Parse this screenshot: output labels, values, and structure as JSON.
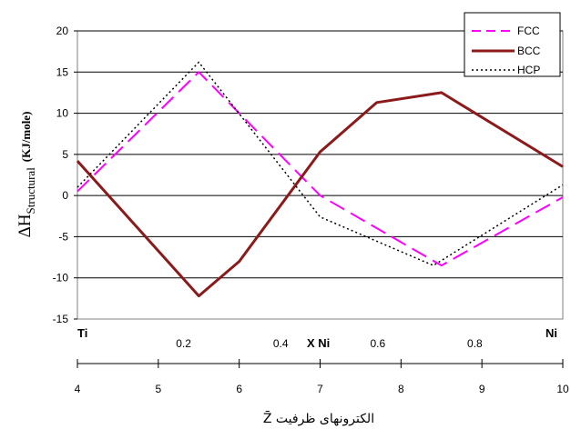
{
  "chart_data": {
    "type": "line",
    "xlabel_top_left": "Ti",
    "xlabel_top_right": "Ni",
    "xlabel_top_mid": "X Ni",
    "xlabel_bottom": "الکترونهای ظرفیت Z̄",
    "ylabel": {
      "main": "ΔH",
      "sub": "Structural",
      "unit": "(KJ/mole)"
    },
    "ylim": [
      -15,
      20
    ],
    "yticks": [
      -15,
      -10,
      -5,
      0,
      5,
      10,
      15,
      20
    ],
    "x_top_ticks": [
      0.2,
      0.4,
      0.6,
      0.8
    ],
    "xlim_bottom": [
      4,
      10
    ],
    "x_bottom_ticks": [
      4,
      5,
      6,
      7,
      8,
      9,
      10
    ],
    "grid": "horizontal",
    "legend_position": "top-right",
    "series": [
      {
        "name": "FCC",
        "color": "#ff00ff",
        "style": "dashed",
        "x": [
          4,
          5.5,
          7,
          8.5,
          10
        ],
        "y": [
          0.5,
          15.0,
          0.0,
          -8.5,
          -0.2
        ]
      },
      {
        "name": "BCC",
        "color": "#8b1a1a",
        "style": "solid",
        "x": [
          4,
          5.5,
          6,
          7,
          7.7,
          8.5,
          10
        ],
        "y": [
          4.2,
          -12.2,
          -8.0,
          5.3,
          11.3,
          12.5,
          3.5
        ]
      },
      {
        "name": "HCP",
        "color": "#000000",
        "style": "dotted",
        "x": [
          4,
          5.5,
          7,
          8.4,
          10
        ],
        "y": [
          1.0,
          16.2,
          -2.6,
          -8.5,
          1.3
        ]
      }
    ]
  }
}
